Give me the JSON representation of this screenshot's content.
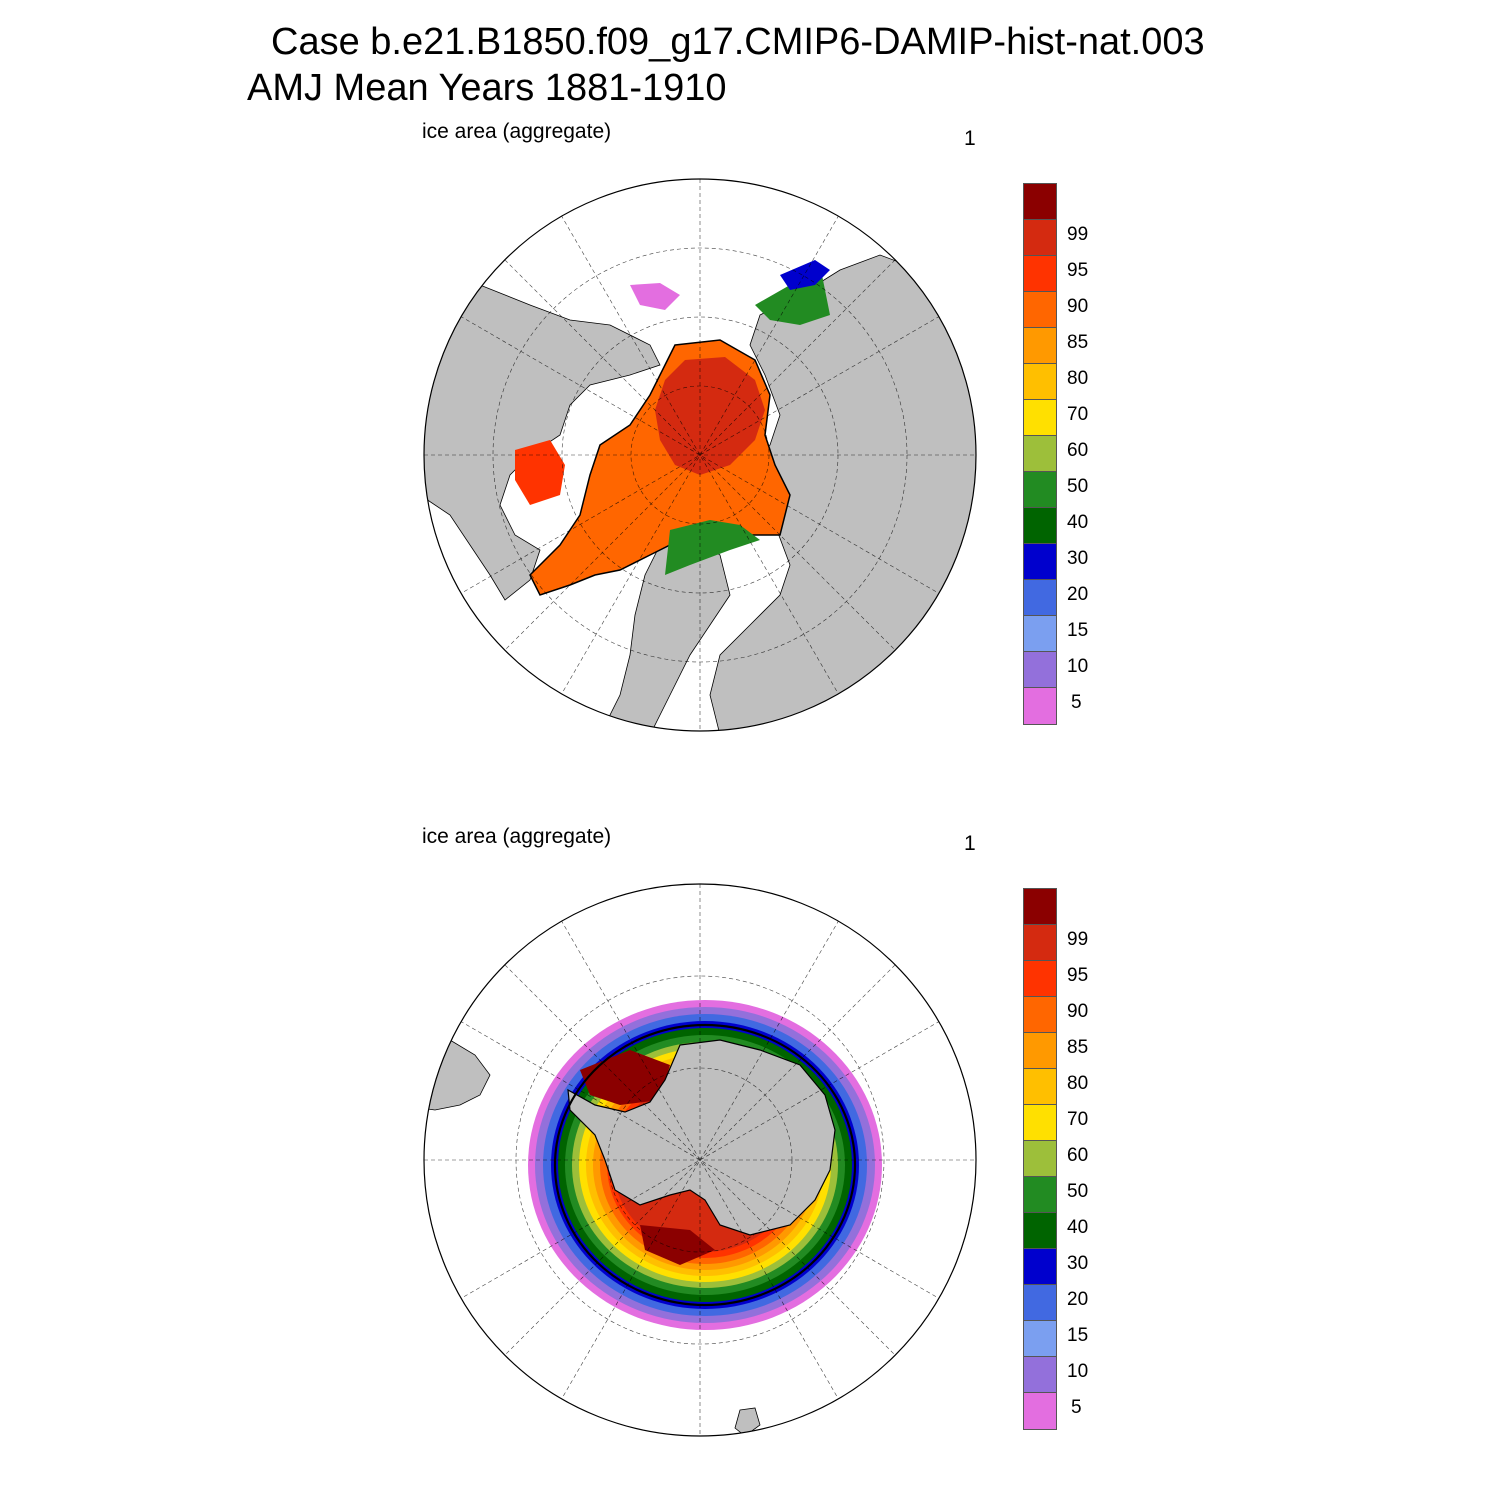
{
  "title": {
    "line1": "Case b.e21.B1850.f09_g17.CMIP6-DAMIP-hist-nat.003",
    "line2": "AMJ Mean   Years 1881-1910"
  },
  "panels": [
    {
      "label": "ice area  (aggregate)",
      "number": "1",
      "hemisphere": "north"
    },
    {
      "label": "ice area  (aggregate)",
      "number": "1",
      "hemisphere": "south"
    }
  ],
  "colorbar": {
    "labels": [
      "99",
      "95",
      "90",
      "85",
      "80",
      "70",
      "60",
      "50",
      "40",
      "30",
      "20",
      "15",
      "10",
      "5"
    ],
    "colors": [
      "#8b0000",
      "#d42a10",
      "#ff3300",
      "#ff6600",
      "#ff9900",
      "#ffbf00",
      "#ffe000",
      "#9dbf3a",
      "#228b22",
      "#006400",
      "#0000cd",
      "#4169e1",
      "#7b9ff0",
      "#9370db",
      "#e36ee0"
    ]
  },
  "map_colors": {
    "land": "#bfbfbf",
    "ocean": "#ffffff",
    "ice_edge": "#000000"
  }
}
